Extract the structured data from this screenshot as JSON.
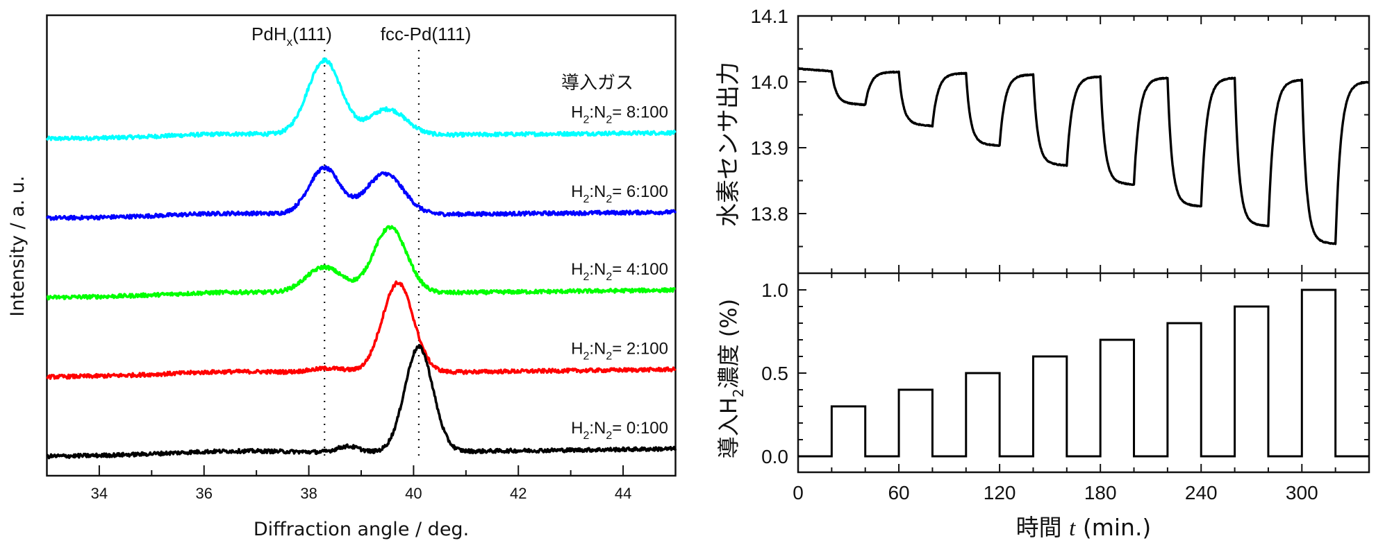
{
  "chart_data": [
    {
      "id": "xrd",
      "type": "line",
      "title": "",
      "xlabel": "Diffraction angle / deg.",
      "ylabel": "Intensity / a. u.",
      "xlim": [
        33,
        45
      ],
      "xticks": [
        34,
        36,
        38,
        40,
        42,
        44
      ],
      "xtick_labels": [
        "34",
        "36",
        "38",
        "40",
        "42",
        "44"
      ],
      "minor_xticks": [
        35,
        37,
        39,
        41,
        43
      ],
      "grid": false,
      "legend_title": "導入ガス",
      "reference_lines": [
        {
          "label_main": "PdH",
          "label_sub": "x",
          "label_tail": "(111)",
          "x": 38.3
        },
        {
          "label_main": "fcc-Pd(111)",
          "label_sub": "",
          "label_tail": "",
          "x": 40.1
        }
      ],
      "series": [
        {
          "name": "H2:N2 = 8:100",
          "label_parts": [
            "H",
            "2",
            ":N",
            "2",
            "= 8:100"
          ],
          "color": "#00ffff",
          "offset": 4,
          "baseline_start": 0.0,
          "baseline_end": 0.08,
          "peaks": [
            {
              "center": 38.3,
              "height": 1.0,
              "width": 0.45
            },
            {
              "center": 39.5,
              "height": 0.35,
              "width": 0.5
            }
          ]
        },
        {
          "name": "H2:N2 = 6:100",
          "label_parts": [
            "H",
            "2",
            ":N",
            "2",
            "= 6:100"
          ],
          "color": "#0000ff",
          "offset": 3,
          "baseline_start": 0.0,
          "baseline_end": 0.08,
          "peaks": [
            {
              "center": 38.3,
              "height": 0.62,
              "width": 0.42
            },
            {
              "center": 39.45,
              "height": 0.55,
              "width": 0.5
            }
          ]
        },
        {
          "name": "H2:N2 = 4:100",
          "label_parts": [
            "H",
            "2",
            ":N",
            "2",
            "= 4:100"
          ],
          "color": "#00ff00",
          "offset": 2,
          "baseline_start": 0.0,
          "baseline_end": 0.1,
          "peaks": [
            {
              "center": 38.3,
              "height": 0.35,
              "width": 0.5
            },
            {
              "center": 39.55,
              "height": 0.88,
              "width": 0.45
            }
          ]
        },
        {
          "name": "H2:N2 = 2:100",
          "label_parts": [
            "H",
            "2",
            ":N",
            "2",
            "= 2:100"
          ],
          "color": "#ff0000",
          "offset": 1,
          "baseline_start": 0.0,
          "baseline_end": 0.1,
          "peaks": [
            {
              "center": 38.4,
              "height": 0.06,
              "width": 0.5
            },
            {
              "center": 39.7,
              "height": 1.2,
              "width": 0.42
            }
          ]
        },
        {
          "name": "H2:N2 = 0:100",
          "label_parts": [
            "H",
            "2",
            ":N",
            "2",
            "= 0:100"
          ],
          "color": "#000000",
          "offset": 0,
          "baseline_start": 0.0,
          "baseline_end": 0.1,
          "peaks": [
            {
              "center": 38.75,
              "height": 0.08,
              "width": 0.3
            },
            {
              "center": 40.1,
              "height": 1.4,
              "width": 0.38
            }
          ]
        }
      ]
    },
    {
      "id": "sensor",
      "type": "line",
      "title": "",
      "xlabel": "",
      "ylabel": "水素センサ出力",
      "xlim": [
        0,
        340
      ],
      "ylim": [
        13.71,
        14.1
      ],
      "yticks": [
        13.8,
        13.9,
        14.0,
        14.1
      ],
      "ytick_labels": [
        "13.8",
        "13.9",
        "14.0",
        "14.1"
      ],
      "minor_yticks": [
        13.75,
        13.85,
        13.95,
        14.05
      ],
      "grid": false,
      "color": "#000000",
      "initial_level": 14.02,
      "pulses": [
        {
          "start": 20,
          "end": 40,
          "min": 13.965,
          "recovered": 14.015
        },
        {
          "start": 60,
          "end": 80,
          "min": 13.933,
          "recovered": 14.013
        },
        {
          "start": 100,
          "end": 120,
          "min": 13.903,
          "recovered": 14.011
        },
        {
          "start": 140,
          "end": 160,
          "min": 13.873,
          "recovered": 14.008
        },
        {
          "start": 180,
          "end": 200,
          "min": 13.844,
          "recovered": 14.006
        },
        {
          "start": 220,
          "end": 240,
          "min": 13.811,
          "recovered": 14.006
        },
        {
          "start": 260,
          "end": 280,
          "min": 13.781,
          "recovered": 14.003
        },
        {
          "start": 300,
          "end": 320,
          "min": 13.754,
          "recovered": 14.0
        }
      ]
    },
    {
      "id": "h2conc",
      "type": "line",
      "title": "",
      "xlabel": "時間 t (min.)",
      "xlabel_parts": [
        "時間 ",
        "t",
        " (min.)"
      ],
      "ylabel": "導入H2濃度 (%)",
      "ylabel_parts": [
        "導入H",
        "2",
        "濃度 (%)"
      ],
      "xlim": [
        0,
        340
      ],
      "ylim": [
        -0.13,
        1.15
      ],
      "xticks": [
        0,
        60,
        120,
        180,
        240,
        300
      ],
      "xtick_labels": [
        "0",
        "60",
        "120",
        "180",
        "240",
        "300"
      ],
      "minor_xticks": [
        20,
        40,
        80,
        100,
        140,
        160,
        200,
        220,
        260,
        280,
        320
      ],
      "yticks": [
        0.0,
        0.5,
        1.0
      ],
      "ytick_labels": [
        "0.0",
        "0.5",
        "1.0"
      ],
      "minor_yticks": [
        0.1,
        0.2,
        0.3,
        0.4,
        0.6,
        0.7,
        0.8,
        0.9
      ],
      "grid": false,
      "color": "#000000",
      "steps": [
        {
          "start": 20,
          "end": 40,
          "value": 0.3
        },
        {
          "start": 60,
          "end": 80,
          "value": 0.4
        },
        {
          "start": 100,
          "end": 120,
          "value": 0.5
        },
        {
          "start": 140,
          "end": 160,
          "value": 0.6
        },
        {
          "start": 180,
          "end": 200,
          "value": 0.7
        },
        {
          "start": 220,
          "end": 240,
          "value": 0.8
        },
        {
          "start": 260,
          "end": 280,
          "value": 0.9
        },
        {
          "start": 300,
          "end": 320,
          "value": 1.0
        }
      ]
    }
  ]
}
